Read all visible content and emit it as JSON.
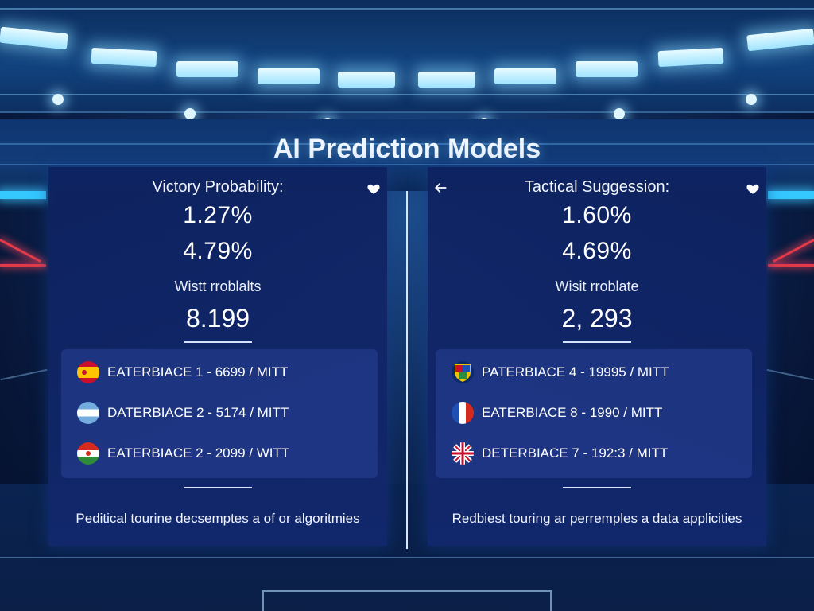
{
  "title": "AI Prediction Models",
  "panels": [
    {
      "heading": "Victory Probability:",
      "stat1": "1.27%",
      "stat2": "4.79%",
      "subtitle": "Wistt rroblalts",
      "big": "8.199",
      "rows": [
        {
          "text": "EATERBIACE 1  -  6699 / MITT",
          "flag": "spain-flag-icon"
        },
        {
          "text": "DATERBIACE 2  -  5174 / MITT",
          "flag": "argentina-flag-icon"
        },
        {
          "text": "EATERBIACE 2  -  2099 / WITT",
          "flag": "mixed-flag-icon"
        }
      ],
      "caption": "Peditical tourine decsemptes a of or algoritmies"
    },
    {
      "heading": "Tactical Suggession:",
      "stat1": "1.60%",
      "stat2": "4.69%",
      "subtitle": "Wisit rroblate",
      "big": "2, 293",
      "rows": [
        {
          "text": "PATERBIACE 4  -  19995 / MITT",
          "flag": "crest-flag-icon"
        },
        {
          "text": "EATERBIACE 8  -  1990 / MITT",
          "flag": "france-flag-icon"
        },
        {
          "text": "DETERBIACE 7  -  192:3 / MITT",
          "flag": "uk-flag-icon"
        }
      ],
      "caption": "Redbiest touring ar perremples a data applicities"
    }
  ],
  "colors": {
    "panel_bg": "#0e2260",
    "accent_glow": "#35c8ff",
    "side_red": "#e23a4a"
  }
}
